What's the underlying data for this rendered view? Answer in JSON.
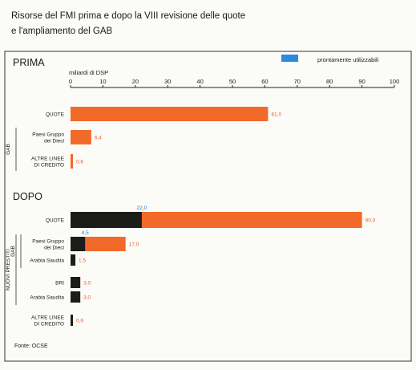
{
  "title_lines": [
    "Risorse del FMI prima e dopo la VIII revisione delle quote",
    "e l'ampliamento del GAB"
  ],
  "legend": {
    "label": "prontamente utilizzabili"
  },
  "source": "Fonte: OCSE",
  "colors": {
    "orange": "#f26a2a",
    "dark": "#1c1c1a",
    "legend_blue": "#2a8ae0",
    "value_orange": "#e8602a",
    "value_blue": "#2a7fc9",
    "border": "#333333",
    "background": "#fbfbf7"
  },
  "chart_data": {
    "type": "bar",
    "orientation": "horizontal",
    "axis": {
      "label": "miliardi di DSP",
      "min": 0,
      "max": 100,
      "ticks": [
        0,
        10,
        20,
        30,
        40,
        50,
        60,
        70,
        80,
        90,
        100
      ]
    },
    "legend_placement": "top-right",
    "panels": [
      {
        "title": "PRIMA",
        "groups": [
          {
            "label": "GAB",
            "rows": [
              1,
              2
            ]
          }
        ],
        "rows": [
          {
            "label_lines": [
              "QUOTE"
            ],
            "total": 61.0,
            "total_label": "61,0",
            "ready": null,
            "ready_label": ""
          },
          {
            "label_lines": [
              "Paesi Gruppo",
              "dei Dieci"
            ],
            "total": 6.4,
            "total_label": "6,4",
            "ready": null,
            "ready_label": ""
          },
          {
            "label_lines": [
              "ALTRE LINEE",
              "DI CREDITO"
            ],
            "total": 0.6,
            "total_label": "0,6",
            "ready": null,
            "ready_label": ""
          }
        ]
      },
      {
        "title": "DOPO",
        "groups": [
          {
            "label": "GAB",
            "rows": [
              1,
              2
            ]
          },
          {
            "label": "NUOVI PRESTITI",
            "rows": [
              1,
              2,
              3,
              4
            ]
          }
        ],
        "rows": [
          {
            "label_lines": [
              "QUOTE"
            ],
            "total": 90.0,
            "total_label": "90,0",
            "ready": 22.0,
            "ready_label": "22,0"
          },
          {
            "label_lines": [
              "Paesi Gruppo",
              "dei Dieci"
            ],
            "total": 17.0,
            "total_label": "17,0",
            "ready": 4.5,
            "ready_label": "4,5"
          },
          {
            "label_lines": [
              "Arabia Saudita"
            ],
            "total": 1.5,
            "total_label": "1,5",
            "ready": 1.5,
            "ready_label": ""
          },
          {
            "label_lines": [
              "BRI"
            ],
            "total": 3.0,
            "total_label": "3,0",
            "ready": 3.0,
            "ready_label": ""
          },
          {
            "label_lines": [
              "Arabia Saudita"
            ],
            "total": 3.0,
            "total_label": "3,0",
            "ready": 3.0,
            "ready_label": ""
          },
          {
            "label_lines": [
              "ALTRE LINEE",
              "DI CREDITO"
            ],
            "total": 0.6,
            "total_label": "0,6",
            "ready": 0.6,
            "ready_label": ""
          }
        ]
      }
    ]
  }
}
